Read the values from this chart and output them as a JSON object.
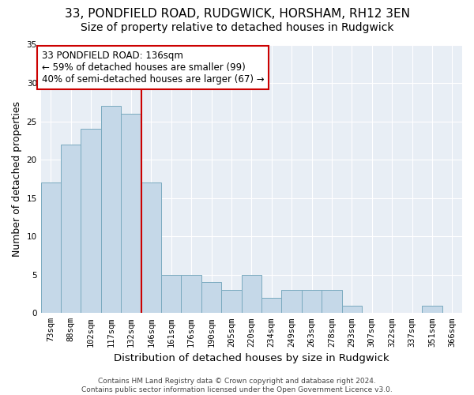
{
  "title1": "33, PONDFIELD ROAD, RUDGWICK, HORSHAM, RH12 3EN",
  "title2": "Size of property relative to detached houses in Rudgwick",
  "xlabel": "Distribution of detached houses by size in Rudgwick",
  "ylabel": "Number of detached properties",
  "categories": [
    "73sqm",
    "88sqm",
    "102sqm",
    "117sqm",
    "132sqm",
    "146sqm",
    "161sqm",
    "176sqm",
    "190sqm",
    "205sqm",
    "220sqm",
    "234sqm",
    "249sqm",
    "263sqm",
    "278sqm",
    "293sqm",
    "307sqm",
    "322sqm",
    "337sqm",
    "351sqm",
    "366sqm"
  ],
  "values": [
    17,
    22,
    24,
    27,
    26,
    17,
    5,
    5,
    4,
    3,
    5,
    2,
    3,
    3,
    3,
    1,
    0,
    0,
    0,
    1,
    0
  ],
  "bar_color": "#c5d8e8",
  "bar_edge_color": "#7aaabf",
  "vline_index": 4,
  "vline_color": "#cc0000",
  "annotation_line1": "33 PONDFIELD ROAD: 136sqm",
  "annotation_line2": "← 59% of detached houses are smaller (99)",
  "annotation_line3": "40% of semi-detached houses are larger (67) →",
  "annotation_box_color": "#ffffff",
  "annotation_box_edge_color": "#cc0000",
  "ylim": [
    0,
    35
  ],
  "yticks": [
    0,
    5,
    10,
    15,
    20,
    25,
    30,
    35
  ],
  "footer_text": "Contains HM Land Registry data © Crown copyright and database right 2024.\nContains public sector information licensed under the Open Government Licence v3.0.",
  "bg_color": "#e8eef5",
  "title1_fontsize": 11,
  "title2_fontsize": 10,
  "xlabel_fontsize": 9.5,
  "ylabel_fontsize": 9,
  "tick_fontsize": 7.5,
  "footer_fontsize": 6.5,
  "annotation_fontsize": 8.5
}
